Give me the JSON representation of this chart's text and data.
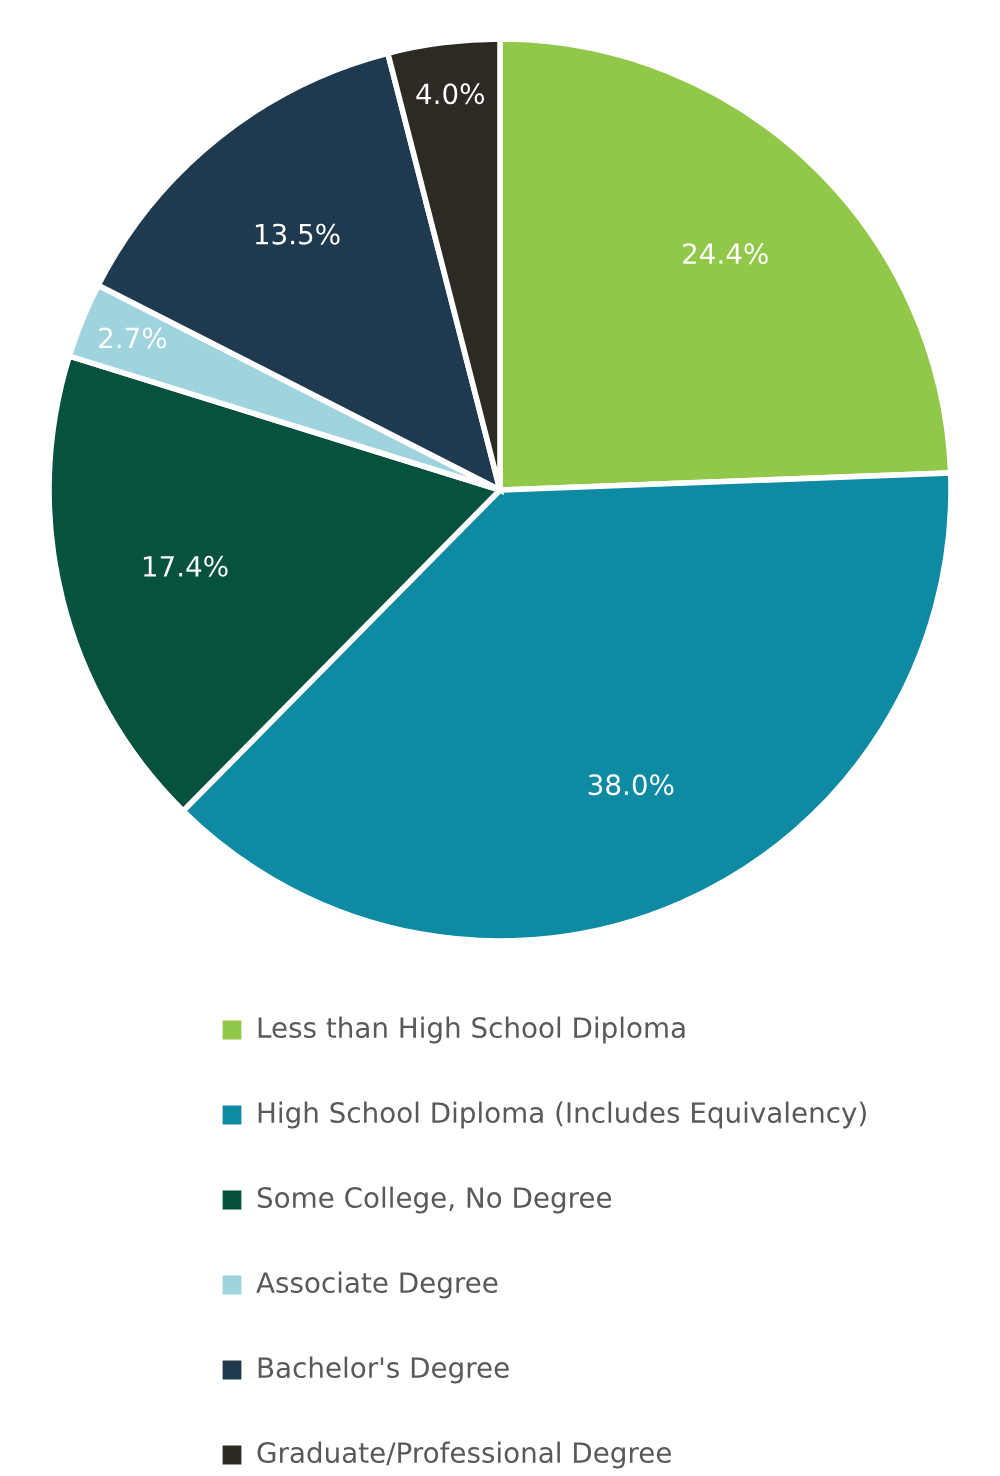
{
  "chart_data": {
    "type": "pie",
    "categories": [
      "Less than High School Diploma",
      "High School Diploma (Includes Equivalency)",
      "Some College, No Degree",
      "Associate Degree",
      "Bachelor's Degree",
      "Graduate/Professional Degree"
    ],
    "values": [
      24.4,
      38.0,
      17.4,
      2.7,
      13.5,
      4.0
    ],
    "colors": [
      "#92c84a",
      "#0e8aa3",
      "#07513f",
      "#9fd4df",
      "#1f3a4e",
      "#2c2a22"
    ],
    "value_labels": [
      "24.4%",
      "38.0%",
      "17.4%",
      "2.7%",
      "13.5%",
      "4.0%"
    ],
    "legend": "bottom"
  }
}
